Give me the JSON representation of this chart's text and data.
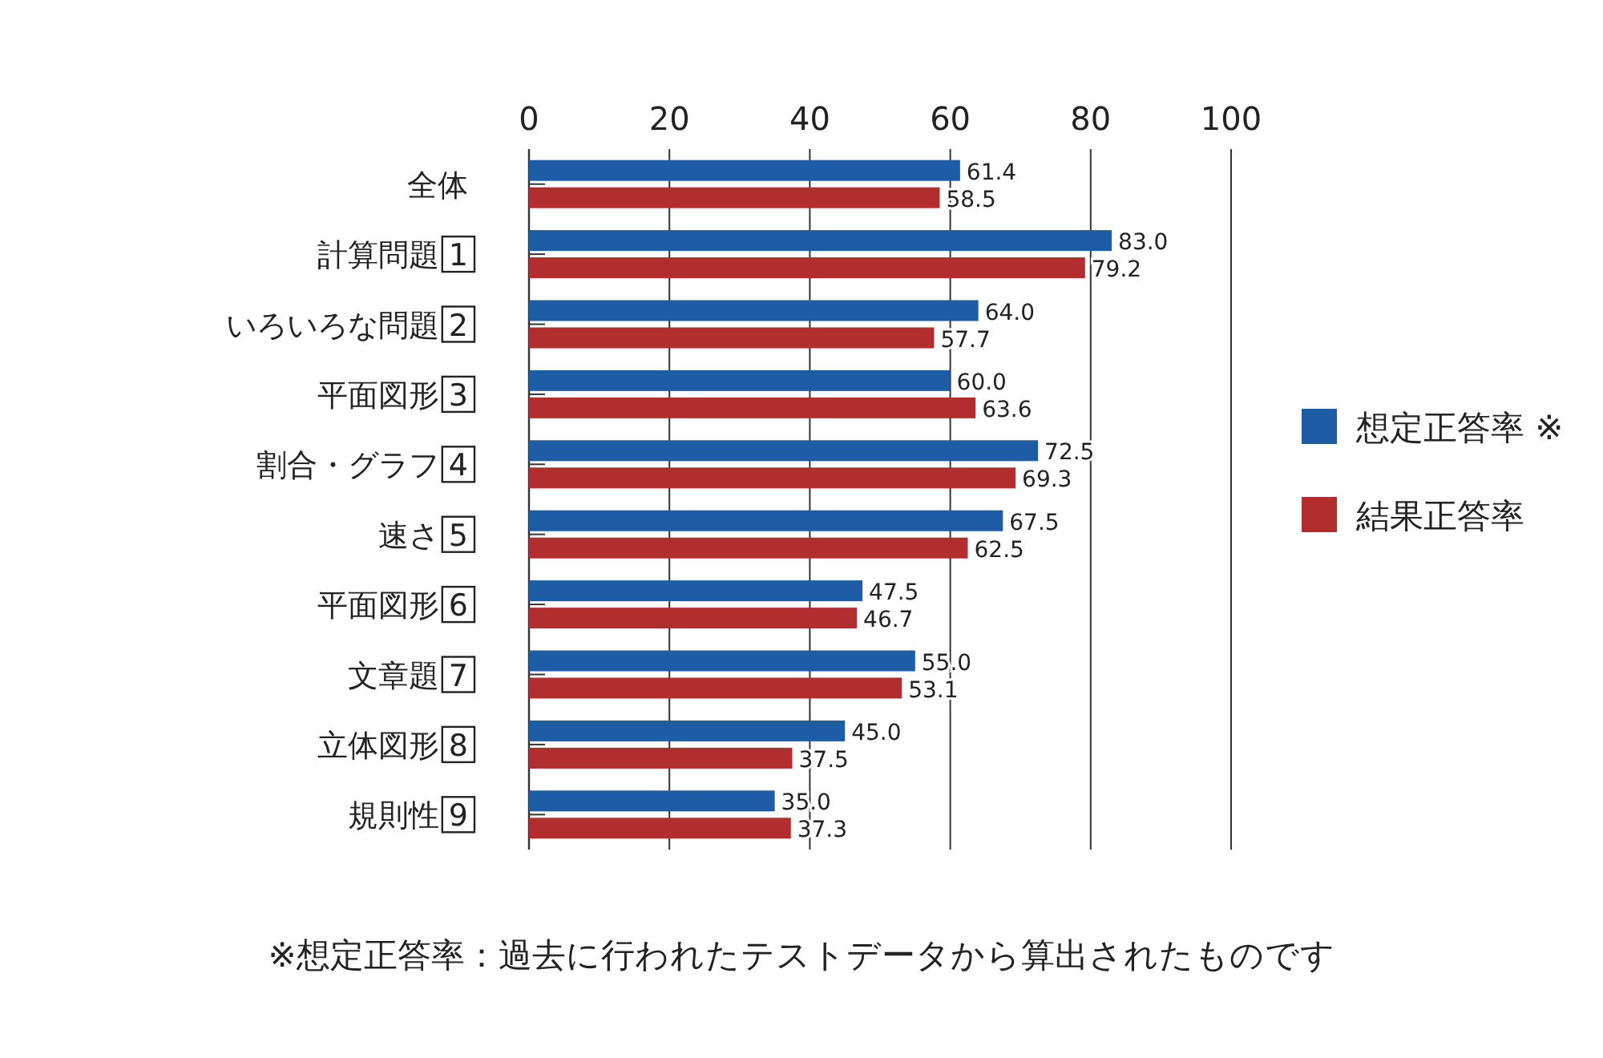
{
  "chart_data": {
    "type": "bar",
    "orientation": "horizontal",
    "categories": [
      "全体",
      "計算問題 1",
      "いろいろな問題 2",
      "平面図形 3",
      "割合・グラフ 4",
      "速さ 5",
      "平面図形 6",
      "文章題 7",
      "立体図形 8",
      "規則性 9"
    ],
    "series": [
      {
        "name": "想定正答率 ※",
        "color": "#1f5ca6",
        "values": [
          61.4,
          83.0,
          64.0,
          60.0,
          72.5,
          67.5,
          47.5,
          55.0,
          45.0,
          35.0
        ],
        "value_labels": [
          "61.4",
          "83.0",
          "64.0",
          "60.0",
          "72.5",
          "67.5",
          "47.5",
          "55.0",
          "45.0",
          "35.0"
        ]
      },
      {
        "name": "結果正答率",
        "color": "#b22e2e",
        "values": [
          58.5,
          79.2,
          57.7,
          63.6,
          69.3,
          62.5,
          46.7,
          53.1,
          37.5,
          37.3
        ],
        "value_labels": [
          "58.5",
          "79.2",
          "57.7",
          "63.6",
          "69.3",
          "62.5",
          "46.7",
          "53.1",
          "37.5",
          "37.3"
        ]
      }
    ],
    "xlim": [
      0,
      100
    ],
    "xticks": [
      0,
      20,
      40,
      60,
      80,
      100
    ],
    "grid": "x",
    "legend": "right",
    "annotations": [
      "※想定正答率：過去に行われたテストデータから算出されたものです"
    ]
  }
}
